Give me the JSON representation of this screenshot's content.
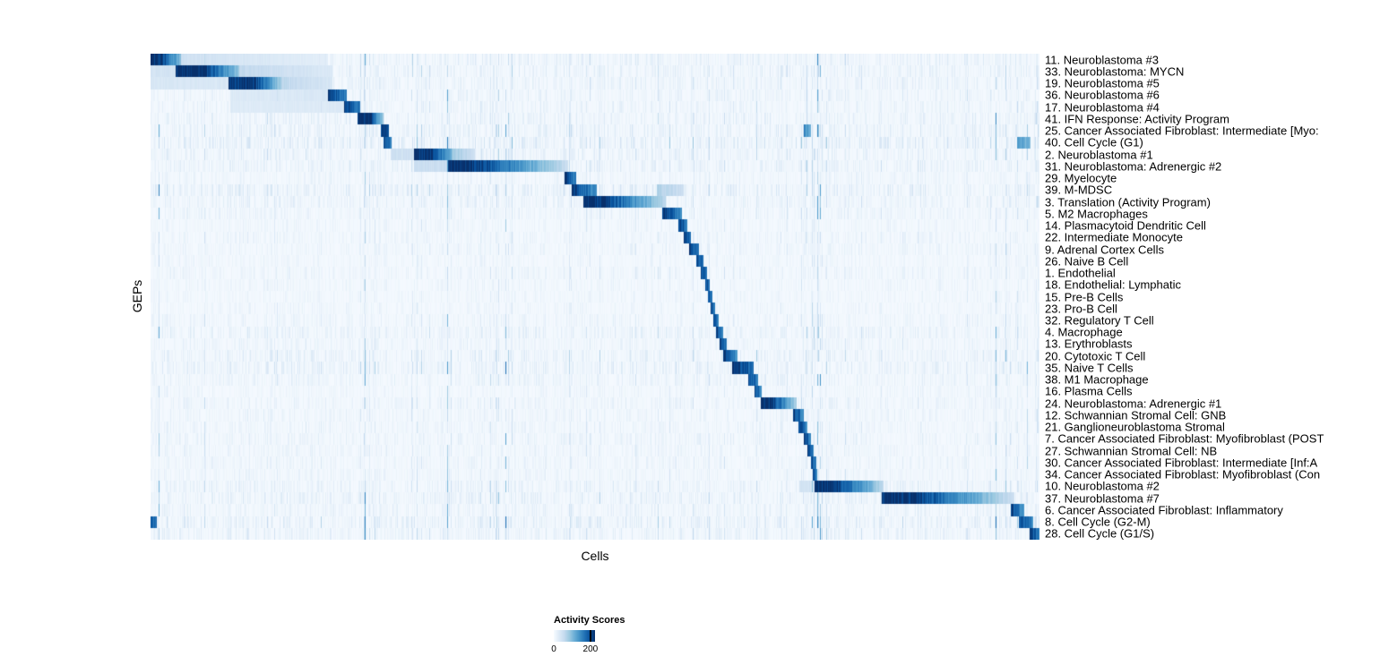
{
  "chart_data": {
    "type": "heatmap",
    "title": "",
    "xlabel": "Cells",
    "ylabel": "GEPs",
    "colormap": "Blues",
    "colormap_stops": [
      "#f7fbff",
      "#deebf7",
      "#c6dbef",
      "#9ecae1",
      "#6baed6",
      "#4292c6",
      "#2171b5",
      "#08519c",
      "#08306b"
    ],
    "vmin": 0,
    "vmax": 225,
    "legend": {
      "title": "Activity Scores",
      "tick_min": "0",
      "tick_max": "200",
      "tick_max_value": 200
    },
    "n_rows": 41,
    "rows": [
      {
        "label": "11. Neuroblastoma #3",
        "noise": 0.7,
        "blocks": [
          [
            0.0,
            0.014,
            225,
            225
          ],
          [
            0.014,
            0.034,
            205,
            95
          ],
          [
            0.034,
            0.2,
            45,
            22
          ]
        ]
      },
      {
        "label": "33. Neuroblastoma: MYCN",
        "noise": 0.7,
        "blocks": [
          [
            0.0,
            0.028,
            40,
            40
          ],
          [
            0.028,
            0.062,
            228,
            228
          ],
          [
            0.062,
            0.1,
            212,
            85
          ],
          [
            0.1,
            0.205,
            60,
            30
          ]
        ]
      },
      {
        "label": "19. Neuroblastoma #5",
        "noise": 0.65,
        "blocks": [
          [
            0.0,
            0.088,
            34,
            34
          ],
          [
            0.088,
            0.118,
            222,
            222
          ],
          [
            0.118,
            0.148,
            205,
            75
          ],
          [
            0.148,
            0.205,
            62,
            34
          ]
        ]
      },
      {
        "label": "36. Neuroblastoma #6",
        "noise": 0.6,
        "blocks": [
          [
            0.09,
            0.2,
            30,
            34
          ],
          [
            0.2,
            0.221,
            218,
            150
          ]
        ]
      },
      {
        "label": "17. Neuroblastoma #4",
        "noise": 0.6,
        "blocks": [
          [
            0.09,
            0.218,
            28,
            30
          ],
          [
            0.218,
            0.236,
            222,
            160
          ]
        ]
      },
      {
        "label": "41. IFN Response: Activity Program",
        "noise": 0.7,
        "blocks": [
          [
            0.233,
            0.249,
            226,
            226
          ],
          [
            0.249,
            0.262,
            185,
            85
          ]
        ]
      },
      {
        "label": "25. Cancer Associated Fibroblast: Intermediate [Myo:",
        "noise": 0.8,
        "blocks": [
          [
            0.259,
            0.268,
            222,
            180
          ],
          [
            0.735,
            0.743,
            150,
            105
          ]
        ]
      },
      {
        "label": "40. Cell Cycle (G1)",
        "noise": 1.0,
        "blocks": [
          [
            0.262,
            0.271,
            200,
            150
          ],
          [
            0.975,
            0.99,
            130,
            100
          ]
        ]
      },
      {
        "label": "2. Neuroblastoma #1",
        "noise": 0.7,
        "blocks": [
          [
            0.27,
            0.296,
            46,
            46
          ],
          [
            0.296,
            0.318,
            226,
            226
          ],
          [
            0.318,
            0.34,
            212,
            92
          ],
          [
            0.34,
            0.365,
            82,
            45
          ]
        ]
      },
      {
        "label": "31. Neuroblastoma: Adrenergic #2",
        "noise": 0.7,
        "blocks": [
          [
            0.296,
            0.335,
            50,
            50
          ],
          [
            0.335,
            0.362,
            230,
            230
          ],
          [
            0.362,
            0.47,
            222,
            50
          ]
        ]
      },
      {
        "label": "29. Myelocyte",
        "noise": 0.5,
        "blocks": [
          [
            0.466,
            0.479,
            212,
            150
          ]
        ]
      },
      {
        "label": "39. M-MDSC",
        "noise": 0.9,
        "blocks": [
          [
            0.474,
            0.502,
            222,
            130
          ],
          [
            0.57,
            0.6,
            72,
            50
          ]
        ]
      },
      {
        "label": "3. Translation (Activity Program)",
        "noise": 0.7,
        "blocks": [
          [
            0.487,
            0.512,
            226,
            226
          ],
          [
            0.512,
            0.58,
            212,
            62
          ]
        ]
      },
      {
        "label": "5. M2 Macrophages",
        "noise": 0.6,
        "blocks": [
          [
            0.576,
            0.598,
            222,
            140
          ]
        ]
      },
      {
        "label": "14. Plasmacytoid Dendritic Cell",
        "noise": 0.4,
        "blocks": [
          [
            0.594,
            0.604,
            216,
            160
          ]
        ]
      },
      {
        "label": "22. Intermediate Monocyte",
        "noise": 0.5,
        "blocks": [
          [
            0.6,
            0.608,
            212,
            160
          ]
        ]
      },
      {
        "label": "9. Adrenal Cortex Cells",
        "noise": 0.5,
        "blocks": [
          [
            0.606,
            0.617,
            216,
            150
          ]
        ]
      },
      {
        "label": "26. Naive B Cell",
        "noise": 0.4,
        "blocks": [
          [
            0.614,
            0.622,
            212,
            160
          ]
        ]
      },
      {
        "label": "1. Endothelial",
        "noise": 0.5,
        "blocks": [
          [
            0.619,
            0.626,
            212,
            160
          ]
        ]
      },
      {
        "label": "18. Endothelial: Lymphatic",
        "noise": 0.4,
        "blocks": [
          [
            0.624,
            0.6295,
            206,
            160
          ]
        ]
      },
      {
        "label": "15. Pre-B Cells",
        "noise": 0.4,
        "blocks": [
          [
            0.627,
            0.632,
            206,
            160
          ]
        ]
      },
      {
        "label": "23. Pro-B Cell",
        "noise": 0.4,
        "blocks": [
          [
            0.63,
            0.635,
            206,
            160
          ]
        ]
      },
      {
        "label": "32. Regulatory T Cell",
        "noise": 0.5,
        "blocks": [
          [
            0.633,
            0.639,
            206,
            155
          ]
        ]
      },
      {
        "label": "4. Macrophage",
        "noise": 0.7,
        "blocks": [
          [
            0.636,
            0.644,
            212,
            150
          ]
        ]
      },
      {
        "label": "13. Erythroblasts",
        "noise": 0.5,
        "blocks": [
          [
            0.64,
            0.648,
            212,
            150
          ]
        ]
      },
      {
        "label": "20. Cytotoxic T Cell",
        "noise": 0.8,
        "blocks": [
          [
            0.644,
            0.66,
            218,
            140
          ]
        ]
      },
      {
        "label": "35. Naive T Cells",
        "noise": 0.8,
        "blocks": [
          [
            0.654,
            0.678,
            226,
            170
          ]
        ]
      },
      {
        "label": "38. M1 Macrophage",
        "noise": 0.6,
        "blocks": [
          [
            0.672,
            0.683,
            212,
            150
          ]
        ]
      },
      {
        "label": "16. Plasma Cells",
        "noise": 0.4,
        "blocks": [
          [
            0.679,
            0.687,
            212,
            150
          ]
        ]
      },
      {
        "label": "24. Neuroblastoma: Adrenergic #1",
        "noise": 0.6,
        "blocks": [
          [
            0.686,
            0.701,
            222,
            222
          ],
          [
            0.701,
            0.727,
            202,
            72
          ]
        ]
      },
      {
        "label": "12. Schwannian Stromal Cell: GNB",
        "noise": 0.5,
        "blocks": [
          [
            0.723,
            0.735,
            216,
            140
          ]
        ]
      },
      {
        "label": "21. Ganglioneuroblastoma Stromal",
        "noise": 0.5,
        "blocks": [
          [
            0.729,
            0.739,
            212,
            140
          ]
        ]
      },
      {
        "label": "7. Cancer Associated Fibroblast: Myofibroblast (POST",
        "noise": 0.6,
        "blocks": [
          [
            0.735,
            0.743,
            216,
            150
          ]
        ]
      },
      {
        "label": "27. Schwannian Stromal Cell: NB",
        "noise": 0.5,
        "blocks": [
          [
            0.739,
            0.746,
            212,
            150
          ]
        ]
      },
      {
        "label": "30. Cancer Associated Fibroblast: Intermediate [Inf:A",
        "noise": 0.5,
        "blocks": [
          [
            0.743,
            0.7485,
            206,
            150
          ]
        ]
      },
      {
        "label": "34. Cancer Associated Fibroblast: Myofibroblast (Con",
        "noise": 0.5,
        "blocks": [
          [
            0.745,
            0.7505,
            206,
            150
          ]
        ]
      },
      {
        "label": "10. Neuroblastoma #2",
        "noise": 0.7,
        "blocks": [
          [
            0.73,
            0.747,
            42,
            42
          ],
          [
            0.747,
            0.772,
            226,
            226
          ],
          [
            0.772,
            0.825,
            212,
            62
          ]
        ]
      },
      {
        "label": "37. Neuroblastoma #7",
        "noise": 0.8,
        "blocks": [
          [
            0.823,
            0.862,
            226,
            226
          ],
          [
            0.862,
            0.972,
            216,
            46
          ]
        ]
      },
      {
        "label": "6. Cancer Associated Fibroblast: Inflammatory",
        "noise": 0.6,
        "blocks": [
          [
            0.968,
            0.983,
            216,
            130
          ]
        ]
      },
      {
        "label": "8. Cell Cycle (G2-M)",
        "noise": 0.9,
        "blocks": [
          [
            0.0,
            0.007,
            190,
            160
          ],
          [
            0.977,
            0.993,
            212,
            140
          ]
        ]
      },
      {
        "label": "28. Cell Cycle (G1/S)",
        "noise": 0.7,
        "blocks": [
          [
            0.989,
            1.001,
            216,
            150
          ]
        ]
      }
    ]
  }
}
